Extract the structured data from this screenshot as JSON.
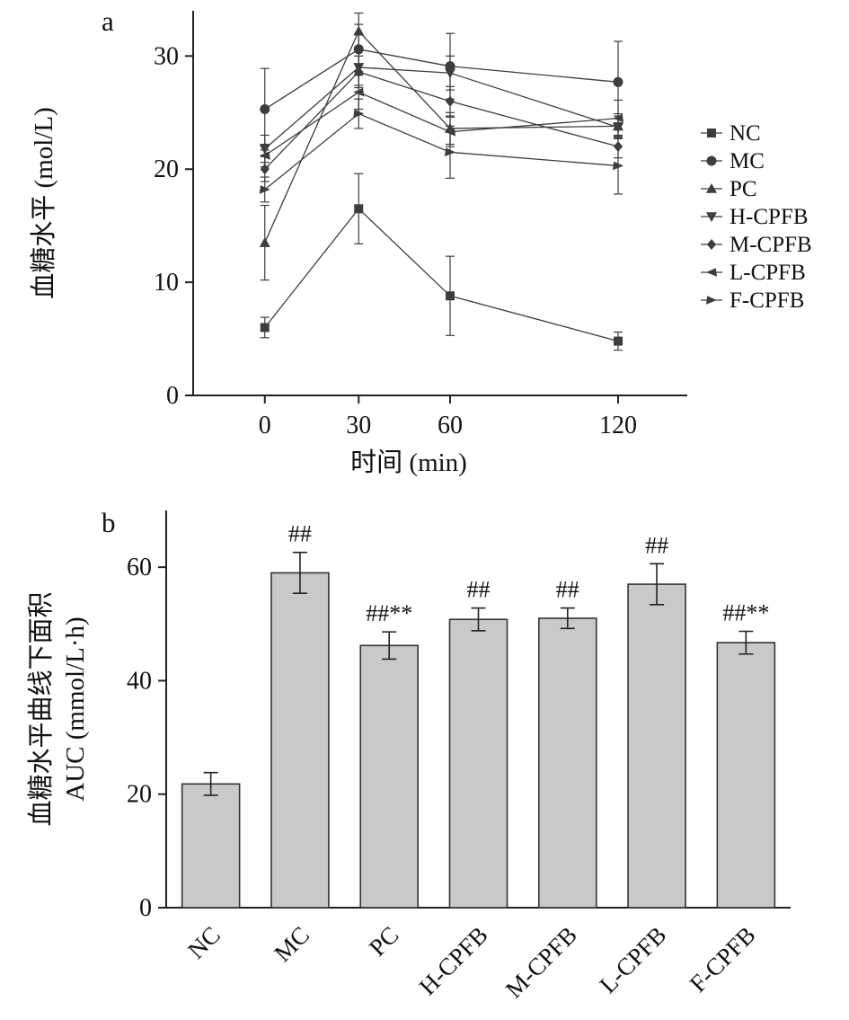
{
  "colors": {
    "line": "#3d3d3d",
    "axis": "#222222",
    "text": "#111111"
  },
  "chart_data": [
    {
      "type": "line",
      "panel_label": "a",
      "xlabel": "时间 (min)",
      "ylabel": "血糖水平 (mol/L)",
      "x_tick_labels": [
        "0",
        "30",
        "60",
        "120"
      ],
      "x_values_min": [
        0,
        30,
        60,
        120
      ],
      "y_ticks": [
        0,
        10,
        20,
        30
      ],
      "ylim": [
        0,
        34
      ],
      "grid": false,
      "legend_position": "right",
      "series": [
        {
          "name": "NC",
          "marker": "square",
          "values": [
            6.0,
            16.5,
            8.8,
            4.8
          ],
          "errors": [
            0.9,
            3.1,
            3.5,
            0.8
          ]
        },
        {
          "name": "MC",
          "marker": "circle",
          "values": [
            25.3,
            30.6,
            29.1,
            27.7
          ],
          "errors": [
            3.6,
            2.2,
            2.9,
            3.6
          ]
        },
        {
          "name": "PC",
          "marker": "triangle-up",
          "values": [
            13.5,
            32.2,
            23.6,
            23.8
          ],
          "errors": [
            3.3,
            1.6,
            1.4,
            1.1
          ]
        },
        {
          "name": "H-CPFB",
          "marker": "triangle-down",
          "values": [
            21.8,
            29.0,
            28.5,
            23.7
          ],
          "errors": [
            1.2,
            1.6,
            1.5,
            1.0
          ]
        },
        {
          "name": "M-CPFB",
          "marker": "diamond",
          "values": [
            20.0,
            28.6,
            26.0,
            22.0
          ],
          "errors": [
            1.1,
            1.4,
            1.3,
            1.0
          ]
        },
        {
          "name": "L-CPFB",
          "marker": "triangle-left",
          "values": [
            21.2,
            26.8,
            23.3,
            24.5
          ],
          "errors": [
            1.0,
            1.5,
            1.3,
            1.6
          ]
        },
        {
          "name": "F-CPFB",
          "marker": "triangle-right",
          "values": [
            18.2,
            24.9,
            21.5,
            20.3
          ],
          "errors": [
            1.1,
            1.3,
            2.3,
            2.5
          ]
        }
      ]
    },
    {
      "type": "bar",
      "panel_label": "b",
      "ylabel_line1": "血糖水平曲线下面积",
      "ylabel_line2": "AUC (mmol/L·h)",
      "categories": [
        "NC",
        "MC",
        "PC",
        "H-CPFB",
        "M-CPFB",
        "L-CPFB",
        "F-CPFB"
      ],
      "values": [
        21.8,
        59.0,
        46.2,
        50.8,
        51.0,
        57.0,
        46.7
      ],
      "errors": [
        2.0,
        3.6,
        2.4,
        2.0,
        1.8,
        3.6,
        2.0
      ],
      "annotations": [
        "",
        "##",
        "##**",
        "##",
        "##",
        "##",
        "##**"
      ],
      "y_ticks": [
        0,
        20,
        40,
        60
      ],
      "ylim": [
        0,
        70
      ],
      "grid": false,
      "bar_color": "#c9c9c9",
      "bar_edge_color": "#333333"
    }
  ]
}
